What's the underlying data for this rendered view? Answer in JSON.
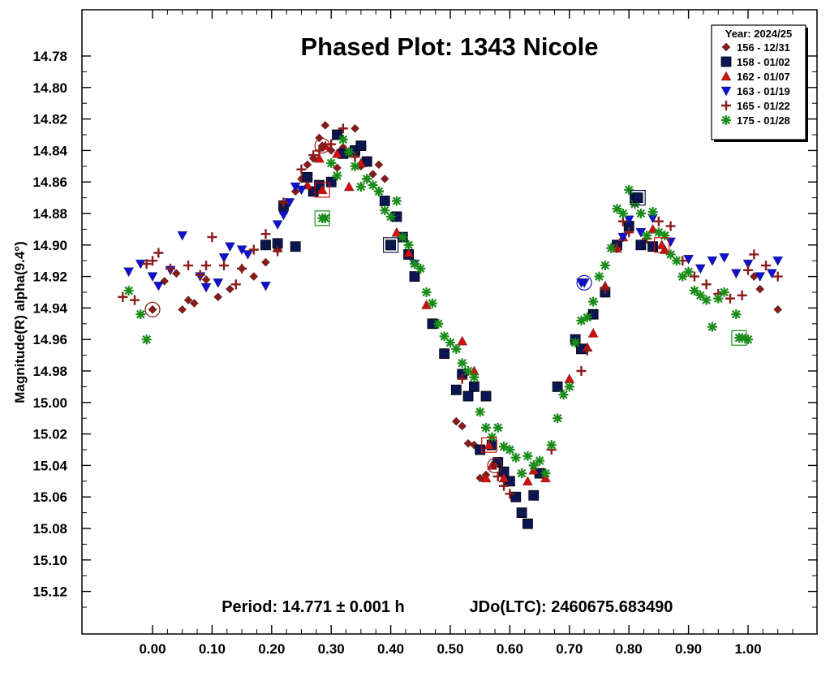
{
  "chart_data": {
    "type": "scatter",
    "title": "Phased Plot: 1343 Nicole",
    "ylabel": "Magnitude(R) alpha(9.4°)",
    "xlabel": "",
    "xlim": [
      -0.05,
      1.05
    ],
    "ylim": [
      14.76,
      15.14
    ],
    "y_inverted": true,
    "grid": false,
    "x_ticks": [
      "0.00",
      "0.10",
      "0.20",
      "0.30",
      "0.40",
      "0.50",
      "0.60",
      "0.70",
      "0.80",
      "0.90",
      "1.00"
    ],
    "y_ticks": [
      "14.78",
      "14.80",
      "14.82",
      "14.84",
      "14.86",
      "14.88",
      "14.90",
      "14.92",
      "14.94",
      "14.96",
      "14.98",
      "15.00",
      "15.02",
      "15.04",
      "15.06",
      "15.08",
      "15.10",
      "15.12"
    ],
    "legend_title": "Year: 2024/25",
    "legend_position": "top-right",
    "annotations": {
      "period": "Period: 14.771 ± 0.001 h",
      "epoch": "JDo(LTC): 2460675.683490"
    },
    "series": [
      {
        "name": "156 - 12/31",
        "marker": "diamond",
        "color": "#8b1a1a",
        "points": [
          [
            0.0,
            14.941
          ],
          [
            0.02,
            14.923
          ],
          [
            0.04,
            14.918
          ],
          [
            0.05,
            14.941
          ],
          [
            0.06,
            14.935
          ],
          [
            0.07,
            14.937
          ],
          [
            0.09,
            14.922
          ],
          [
            0.11,
            14.933
          ],
          [
            0.13,
            14.928
          ],
          [
            0.15,
            14.915
          ],
          [
            0.17,
            14.92
          ],
          [
            0.19,
            14.911
          ],
          [
            0.21,
            14.903
          ],
          [
            0.22,
            14.88
          ],
          [
            0.24,
            14.866
          ],
          [
            0.25,
            14.858
          ],
          [
            0.26,
            14.849
          ],
          [
            0.27,
            14.845
          ],
          [
            0.28,
            14.832
          ],
          [
            0.29,
            14.824
          ],
          [
            0.3,
            14.84
          ],
          [
            0.31,
            14.851
          ],
          [
            0.32,
            14.838
          ],
          [
            0.33,
            14.842
          ],
          [
            0.34,
            14.826
          ],
          [
            0.35,
            14.85
          ],
          [
            0.36,
            14.848
          ],
          [
            0.37,
            14.855
          ],
          [
            0.38,
            14.849
          ],
          [
            0.39,
            14.858
          ],
          [
            0.51,
            15.012
          ],
          [
            0.52,
            15.015
          ],
          [
            0.53,
            15.026
          ],
          [
            0.54,
            15.027
          ],
          [
            0.55,
            15.048
          ],
          [
            0.56,
            15.046
          ],
          [
            0.61,
            15.06
          ],
          [
            1.01,
            14.92
          ],
          [
            1.02,
            14.928
          ],
          [
            1.05,
            14.941
          ]
        ]
      },
      {
        "name": "158 - 01/02",
        "marker": "square",
        "color": "#0b1552",
        "points": [
          [
            0.19,
            14.9
          ],
          [
            0.21,
            14.899
          ],
          [
            0.22,
            14.875
          ],
          [
            0.24,
            14.901
          ],
          [
            0.26,
            14.857
          ],
          [
            0.27,
            14.866
          ],
          [
            0.28,
            14.862
          ],
          [
            0.3,
            14.86
          ],
          [
            0.31,
            14.83
          ],
          [
            0.32,
            14.842
          ],
          [
            0.34,
            14.84
          ],
          [
            0.35,
            14.837
          ],
          [
            0.36,
            14.847
          ],
          [
            0.39,
            14.872
          ],
          [
            0.4,
            14.9
          ],
          [
            0.41,
            14.882
          ],
          [
            0.42,
            14.895
          ],
          [
            0.43,
            14.906
          ],
          [
            0.44,
            14.92
          ],
          [
            0.47,
            14.95
          ],
          [
            0.49,
            14.969
          ],
          [
            0.51,
            14.992
          ],
          [
            0.52,
            14.982
          ],
          [
            0.53,
            14.996
          ],
          [
            0.54,
            14.99
          ],
          [
            0.55,
            15.03
          ],
          [
            0.56,
            14.996
          ],
          [
            0.57,
            15.027
          ],
          [
            0.58,
            15.038
          ],
          [
            0.59,
            15.044
          ],
          [
            0.6,
            15.05
          ],
          [
            0.61,
            15.06
          ],
          [
            0.62,
            15.07
          ],
          [
            0.63,
            15.077
          ],
          [
            0.64,
            15.059
          ],
          [
            0.65,
            15.045
          ],
          [
            0.68,
            14.99
          ],
          [
            0.71,
            14.96
          ],
          [
            0.72,
            14.966
          ],
          [
            0.74,
            14.944
          ],
          [
            0.76,
            14.93
          ],
          [
            0.78,
            14.9
          ],
          [
            0.8,
            14.888
          ],
          [
            0.81,
            14.87
          ],
          [
            0.82,
            14.9
          ],
          [
            0.84,
            14.901
          ]
        ]
      },
      {
        "name": "162 - 01/07",
        "marker": "triangle-up",
        "color": "#d01010",
        "points": [
          [
            0.26,
            14.862
          ],
          [
            0.28,
            14.845
          ],
          [
            0.29,
            14.837
          ],
          [
            0.31,
            14.842
          ],
          [
            0.33,
            14.863
          ],
          [
            0.35,
            14.848
          ],
          [
            0.41,
            14.892
          ],
          [
            0.43,
            14.905
          ],
          [
            0.46,
            14.938
          ],
          [
            0.52,
            14.961
          ],
          [
            0.54,
            14.98
          ],
          [
            0.56,
            15.048
          ],
          [
            0.57,
            15.04
          ],
          [
            0.59,
            15.048
          ],
          [
            0.63,
            15.05
          ],
          [
            0.64,
            15.043
          ],
          [
            0.66,
            15.048
          ],
          [
            0.7,
            14.985
          ],
          [
            0.73,
            14.965
          ],
          [
            0.74,
            14.956
          ],
          [
            0.76,
            14.926
          ],
          [
            0.78,
            14.902
          ],
          [
            0.79,
            14.895
          ],
          [
            0.84,
            14.89
          ],
          [
            0.86,
            14.903
          ]
        ]
      },
      {
        "name": "163 - 01/19",
        "marker": "triangle-down",
        "color": "#1010d0",
        "points": [
          [
            -0.04,
            14.917
          ],
          [
            -0.02,
            14.912
          ],
          [
            0.0,
            14.92
          ],
          [
            0.01,
            14.926
          ],
          [
            0.03,
            14.916
          ],
          [
            0.05,
            14.894
          ],
          [
            0.08,
            14.92
          ],
          [
            0.09,
            14.927
          ],
          [
            0.11,
            14.924
          ],
          [
            0.12,
            14.908
          ],
          [
            0.13,
            14.901
          ],
          [
            0.15,
            14.903
          ],
          [
            0.16,
            14.906
          ],
          [
            0.19,
            14.926
          ],
          [
            0.21,
            14.887
          ],
          [
            0.22,
            14.881
          ],
          [
            0.23,
            14.873
          ],
          [
            0.24,
            14.863
          ],
          [
            0.25,
            14.865
          ],
          [
            0.4,
            14.9
          ],
          [
            0.44,
            14.912
          ],
          [
            0.72,
            14.924
          ],
          [
            0.79,
            14.895
          ],
          [
            0.8,
            14.884
          ],
          [
            0.82,
            14.892
          ],
          [
            0.84,
            14.883
          ],
          [
            0.87,
            14.898
          ],
          [
            0.9,
            14.909
          ],
          [
            0.92,
            14.915
          ],
          [
            0.94,
            14.91
          ],
          [
            0.96,
            14.908
          ],
          [
            0.98,
            14.918
          ],
          [
            1.0,
            14.912
          ],
          [
            1.02,
            14.92
          ],
          [
            1.04,
            14.918
          ],
          [
            1.05,
            14.91
          ]
        ]
      },
      {
        "name": "165 - 01/22",
        "marker": "plus",
        "color": "#8b1a1a",
        "points": [
          [
            -0.05,
            14.933
          ],
          [
            -0.03,
            14.935
          ],
          [
            -0.01,
            14.912
          ],
          [
            0.0,
            14.91
          ],
          [
            0.01,
            14.905
          ],
          [
            0.03,
            14.915
          ],
          [
            0.06,
            14.913
          ],
          [
            0.08,
            14.919
          ],
          [
            0.09,
            14.913
          ],
          [
            0.1,
            14.895
          ],
          [
            0.12,
            14.913
          ],
          [
            0.14,
            14.925
          ],
          [
            0.15,
            14.915
          ],
          [
            0.17,
            14.903
          ],
          [
            0.19,
            14.893
          ],
          [
            0.21,
            14.904
          ],
          [
            0.22,
            14.873
          ],
          [
            0.25,
            14.852
          ],
          [
            0.27,
            14.843
          ],
          [
            0.28,
            14.84
          ],
          [
            0.3,
            14.836
          ],
          [
            0.32,
            14.826
          ],
          [
            0.34,
            14.844
          ],
          [
            0.36,
            14.858
          ],
          [
            0.38,
            14.866
          ],
          [
            0.52,
            14.985
          ],
          [
            0.58,
            15.047
          ],
          [
            0.59,
            15.053
          ],
          [
            0.6,
            15.058
          ],
          [
            0.62,
            15.045
          ],
          [
            0.64,
            15.04
          ],
          [
            0.67,
            15.03
          ],
          [
            0.72,
            14.98
          ],
          [
            0.73,
            14.967
          ],
          [
            0.76,
            14.928
          ],
          [
            0.78,
            14.902
          ],
          [
            0.79,
            14.885
          ],
          [
            0.8,
            14.892
          ],
          [
            0.83,
            14.896
          ],
          [
            0.85,
            14.885
          ],
          [
            0.87,
            14.888
          ],
          [
            0.89,
            14.91
          ],
          [
            0.91,
            14.92
          ],
          [
            0.93,
            14.925
          ],
          [
            0.95,
            14.931
          ],
          [
            0.97,
            14.934
          ],
          [
            0.99,
            14.932
          ],
          [
            1.0,
            14.916
          ],
          [
            1.01,
            14.906
          ],
          [
            1.03,
            14.913
          ],
          [
            1.05,
            14.92
          ]
        ]
      },
      {
        "name": "175 - 01/28",
        "marker": "asterisk",
        "color": "#1a8c1a",
        "points": [
          [
            -0.04,
            14.929
          ],
          [
            -0.02,
            14.944
          ],
          [
            -0.01,
            14.96
          ],
          [
            0.29,
            14.883
          ],
          [
            0.3,
            14.848
          ],
          [
            0.31,
            14.856
          ],
          [
            0.32,
            14.833
          ],
          [
            0.33,
            14.841
          ],
          [
            0.34,
            14.85
          ],
          [
            0.35,
            14.863
          ],
          [
            0.36,
            14.858
          ],
          [
            0.37,
            14.862
          ],
          [
            0.38,
            14.866
          ],
          [
            0.39,
            14.878
          ],
          [
            0.4,
            14.882
          ],
          [
            0.41,
            14.872
          ],
          [
            0.42,
            14.895
          ],
          [
            0.43,
            14.9
          ],
          [
            0.44,
            14.912
          ],
          [
            0.45,
            14.915
          ],
          [
            0.46,
            14.93
          ],
          [
            0.47,
            14.937
          ],
          [
            0.48,
            14.95
          ],
          [
            0.49,
            14.958
          ],
          [
            0.5,
            14.962
          ],
          [
            0.51,
            14.966
          ],
          [
            0.52,
            14.975
          ],
          [
            0.53,
            14.98
          ],
          [
            0.54,
            14.984
          ],
          [
            0.55,
            15.006
          ],
          [
            0.56,
            15.016
          ],
          [
            0.57,
            15.022
          ],
          [
            0.58,
            15.016
          ],
          [
            0.59,
            15.028
          ],
          [
            0.6,
            15.03
          ],
          [
            0.61,
            15.035
          ],
          [
            0.62,
            15.045
          ],
          [
            0.63,
            15.034
          ],
          [
            0.64,
            15.04
          ],
          [
            0.65,
            15.037
          ],
          [
            0.66,
            15.045
          ],
          [
            0.67,
            15.027
          ],
          [
            0.68,
            15.01
          ],
          [
            0.69,
            14.995
          ],
          [
            0.7,
            14.99
          ],
          [
            0.71,
            14.962
          ],
          [
            0.72,
            14.948
          ],
          [
            0.73,
            14.946
          ],
          [
            0.74,
            14.936
          ],
          [
            0.75,
            14.92
          ],
          [
            0.76,
            14.913
          ],
          [
            0.77,
            14.902
          ],
          [
            0.78,
            14.877
          ],
          [
            0.79,
            14.88
          ],
          [
            0.8,
            14.865
          ],
          [
            0.81,
            14.874
          ],
          [
            0.82,
            14.88
          ],
          [
            0.83,
            14.894
          ],
          [
            0.84,
            14.879
          ],
          [
            0.85,
            14.892
          ],
          [
            0.86,
            14.894
          ],
          [
            0.87,
            14.906
          ],
          [
            0.88,
            14.91
          ],
          [
            0.89,
            14.92
          ],
          [
            0.9,
            14.917
          ],
          [
            0.91,
            14.929
          ],
          [
            0.92,
            14.932
          ],
          [
            0.93,
            14.935
          ],
          [
            0.94,
            14.952
          ],
          [
            0.95,
            14.934
          ],
          [
            0.96,
            14.93
          ],
          [
            0.98,
            14.944
          ],
          [
            0.99,
            14.959
          ],
          [
            1.0,
            14.96
          ]
        ]
      }
    ],
    "highlighted": [
      {
        "series": 0,
        "x": 0.0,
        "y": 14.941
      },
      {
        "series": 0,
        "x": 0.285,
        "y": 14.837
      },
      {
        "series": 0,
        "x": 0.575,
        "y": 15.04
      },
      {
        "series": 1,
        "x": 0.4,
        "y": 14.9
      },
      {
        "series": 1,
        "x": 0.815,
        "y": 14.87
      },
      {
        "series": 2,
        "x": 0.285,
        "y": 14.865
      },
      {
        "series": 2,
        "x": 0.565,
        "y": 15.027
      },
      {
        "series": 2,
        "x": 0.855,
        "y": 14.9
      },
      {
        "series": 3,
        "x": 0.725,
        "y": 14.924
      },
      {
        "series": 5,
        "x": 0.285,
        "y": 14.883
      },
      {
        "series": 5,
        "x": 0.985,
        "y": 14.959
      }
    ]
  }
}
